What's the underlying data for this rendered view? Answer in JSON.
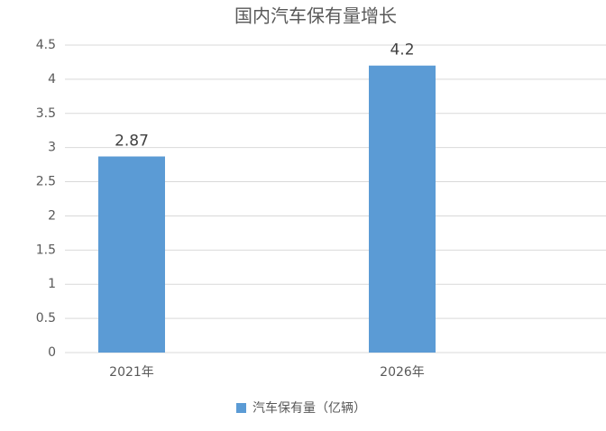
{
  "chart_data": {
    "type": "bar",
    "title": "国内汽车保有量增长",
    "categories": [
      "2021年",
      "2026年"
    ],
    "series": [
      {
        "name": "汽车保有量（亿辆）",
        "color": "#5b9bd5",
        "values": [
          2.87,
          4.2
        ]
      }
    ],
    "ylim": [
      0,
      4.5
    ],
    "yticks": [
      0,
      0.5,
      1,
      1.5,
      2,
      2.5,
      3,
      3.5,
      4,
      4.5
    ],
    "grid": true,
    "legend": "bottom"
  }
}
